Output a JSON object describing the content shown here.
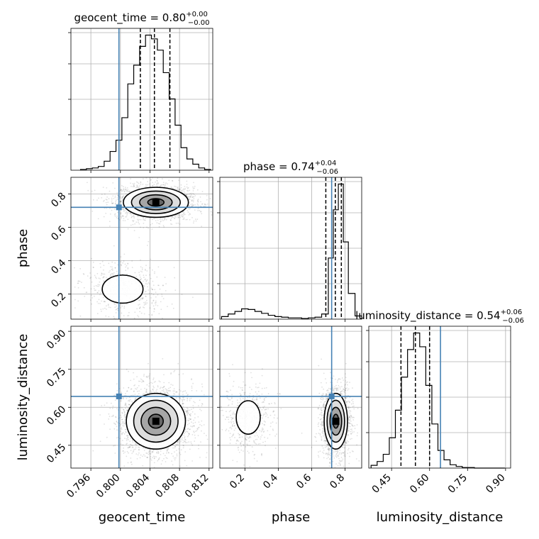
{
  "chart_data": {
    "type": "corner",
    "parameters": [
      {
        "name": "geocent_time",
        "truth": 0.7998,
        "range": [
          0.7933,
          0.8125
        ],
        "ticks": [
          "0.796",
          "0.800",
          "0.804",
          "0.808",
          "0.812"
        ],
        "tick_values": [
          0.796,
          0.8,
          0.804,
          0.808,
          0.812
        ]
      },
      {
        "name": "phase",
        "truth": 0.72,
        "range": [
          0.05,
          0.9
        ],
        "ticks": [
          "0.2",
          "0.4",
          "0.6",
          "0.8"
        ],
        "tick_values": [
          0.2,
          0.4,
          0.6,
          0.8
        ]
      },
      {
        "name": "luminosity_distance",
        "truth": 0.643,
        "range": [
          0.36,
          0.92
        ],
        "ticks": [
          "0.45",
          "0.60",
          "0.75",
          "0.90"
        ],
        "tick_values": [
          0.45,
          0.6,
          0.75,
          0.9
        ]
      }
    ],
    "titles": [
      {
        "base": "geocent_time = 0.80",
        "sup": "+0.00",
        "sub": "−0.00"
      },
      {
        "base": "phase = 0.74",
        "sup": "+0.04",
        "sub": "−0.06"
      },
      {
        "base": "luminosity_distance = 0.54",
        "sup": "+0.06",
        "sub": "−0.06"
      }
    ],
    "quantiles": [
      [
        0.8027,
        0.8046,
        0.8067
      ],
      [
        0.685,
        0.742,
        0.778
      ],
      [
        0.487,
        0.544,
        0.6
      ]
    ],
    "histograms": [
      {
        "param": "geocent_time",
        "bin_edges": [
          0.7946,
          0.7954,
          0.7962,
          0.797,
          0.7978,
          0.7986,
          0.7994,
          0.8002,
          0.801,
          0.8018,
          0.8026,
          0.8034,
          0.8042,
          0.805,
          0.8058,
          0.8066,
          0.8074,
          0.8082,
          0.809,
          0.8098,
          0.8106,
          0.8114,
          0.8122
        ],
        "counts": [
          1,
          2,
          3,
          5,
          12,
          25,
          40,
          70,
          115,
          140,
          165,
          180,
          175,
          160,
          130,
          95,
          60,
          30,
          15,
          8,
          3,
          1
        ]
      },
      {
        "param": "phase",
        "bin_edges": [
          0.06,
          0.1,
          0.14,
          0.18,
          0.22,
          0.26,
          0.3,
          0.34,
          0.38,
          0.42,
          0.46,
          0.5,
          0.54,
          0.58,
          0.62,
          0.66,
          0.7,
          0.73,
          0.76,
          0.79,
          0.82,
          0.86,
          0.9
        ],
        "counts": [
          4,
          8,
          12,
          16,
          15,
          12,
          9,
          6,
          4,
          3,
          2,
          2,
          1,
          2,
          3,
          8,
          95,
          170,
          210,
          120,
          40,
          5
        ]
      },
      {
        "param": "luminosity_distance",
        "bin_edges": [
          0.369,
          0.393,
          0.417,
          0.441,
          0.465,
          0.489,
          0.513,
          0.537,
          0.561,
          0.585,
          0.609,
          0.633,
          0.657,
          0.681,
          0.705,
          0.729,
          0.753,
          0.777,
          0.801,
          0.825,
          0.849,
          0.873,
          0.897
        ],
        "counts": [
          5,
          12,
          25,
          55,
          105,
          165,
          215,
          245,
          220,
          150,
          80,
          32,
          15,
          6,
          3,
          1,
          1,
          0,
          0,
          0,
          0,
          0
        ]
      }
    ],
    "densities": [
      {
        "x": "geocent_time",
        "y": "phase",
        "centers": [
          [
            0.8048,
            0.75
          ],
          [
            0.8003,
            0.23
          ]
        ],
        "sd_x": [
          0.0022,
          0.0023
        ],
        "sd_y": [
          0.045,
          0.07
        ],
        "weights": [
          0.78,
          0.22
        ]
      },
      {
        "x": "geocent_time",
        "y": "luminosity_distance",
        "centers": [
          [
            0.8048,
            0.545
          ]
        ],
        "sd_x": [
          0.002
        ],
        "sd_y": [
          0.055
        ],
        "weights": [
          1.0
        ]
      },
      {
        "x": "phase",
        "y": "luminosity_distance",
        "centers": [
          [
            0.745,
            0.545
          ],
          [
            0.22,
            0.56
          ]
        ],
        "sd_x": [
          0.035,
          0.06
        ],
        "sd_y": [
          0.055,
          0.055
        ],
        "weights": [
          0.78,
          0.22
        ]
      }
    ],
    "truth_color": "#4682b4",
    "grid": true
  }
}
